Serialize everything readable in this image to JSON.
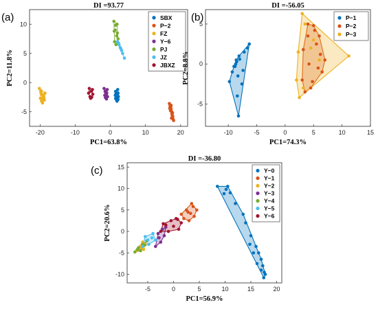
{
  "panels": {
    "a": {
      "letter": "(a)"
    },
    "b": {
      "letter": "(b)"
    },
    "c": {
      "letter": "(c)"
    }
  },
  "chart_data": [
    {
      "id": "a",
      "type": "scatter",
      "title": "DI =93.77",
      "xlabel": "PC1=63.8%",
      "ylabel": "PC2=11.8%",
      "xlim": [
        -23,
        22
      ],
      "ylim": [
        -7.5,
        12.5
      ],
      "xticks": [
        -20,
        -10,
        0,
        10,
        20
      ],
      "yticks": [
        -5,
        0,
        5,
        10
      ],
      "legend_position": "top-right",
      "hulls": false,
      "series": [
        {
          "name": "SBX",
          "color": "#0072BD",
          "x": [
            1.5,
            1.8,
            2.0,
            1.6,
            2.2,
            1.9,
            1.4,
            2.1,
            1.7,
            2.3,
            1.8,
            1.6,
            2.0,
            1.5,
            2.2
          ],
          "y": [
            -1.5,
            -2.0,
            -2.5,
            -2.8,
            -1.8,
            -3.2,
            -2.2,
            -1.2,
            -2.6,
            -2.4,
            -3.0,
            -1.9,
            -2.1,
            -2.7,
            -2.9
          ]
        },
        {
          "name": "P−2",
          "color": "#D95319",
          "x": [
            16.8,
            17.0,
            17.3,
            17.5,
            17.2,
            17.8,
            17.6,
            17.1,
            17.4,
            16.9,
            18.0,
            17.7,
            17.3,
            17.9
          ],
          "y": [
            -3.6,
            -4.0,
            -4.5,
            -5.0,
            -4.2,
            -5.8,
            -5.5,
            -4.8,
            -6.1,
            -4.4,
            -6.5,
            -5.2,
            -3.9,
            -6.3
          ]
        },
        {
          "name": "FZ",
          "color": "#EDB120",
          "x": [
            -20.2,
            -19.8,
            -19.5,
            -19.2,
            -18.8,
            -19.6,
            -19.0,
            -18.6,
            -19.9,
            -19.3,
            -18.9,
            -19.7,
            -19.1,
            -19.4
          ],
          "y": [
            -1.0,
            -1.6,
            -2.0,
            -2.5,
            -3.0,
            -3.2,
            -2.2,
            -1.8,
            -2.7,
            -3.5,
            -2.6,
            -1.4,
            -2.9,
            -2.1
          ]
        },
        {
          "name": "Y−6",
          "color": "#7E2F8E",
          "x": [
            -1.8,
            -1.5,
            -1.2,
            -0.8,
            -1.4,
            -1.0,
            -1.6,
            -0.9,
            -1.3,
            -1.1
          ],
          "y": [
            -1.0,
            -1.5,
            -2.0,
            -2.4,
            -2.6,
            -1.8,
            -2.2,
            -1.2,
            -1.6,
            -2.8
          ]
        },
        {
          "name": "PJ",
          "color": "#77AC30",
          "x": [
            1.0,
            1.5,
            2.0,
            1.2,
            1.8,
            1.4,
            2.2,
            1.6,
            1.1,
            1.9
          ],
          "y": [
            10.5,
            9.8,
            8.5,
            7.0,
            8.0,
            9.0,
            7.5,
            6.5,
            8.8,
            10.0
          ]
        },
        {
          "name": "JZ",
          "color": "#4DBEEE",
          "x": [
            2.0,
            2.5,
            3.0,
            3.5,
            4.0,
            2.8,
            3.2,
            2.3
          ],
          "y": [
            7.0,
            6.5,
            5.8,
            5.0,
            4.2,
            6.0,
            5.5,
            6.8
          ]
        },
        {
          "name": "JBXZ",
          "color": "#A2142F",
          "x": [
            -6.0,
            -5.5,
            -5.0,
            -6.2,
            -5.3,
            -5.8,
            -5.1,
            -5.6
          ],
          "y": [
            -1.0,
            -1.5,
            -2.0,
            -1.8,
            -2.5,
            -2.4,
            -1.2,
            -2.7
          ]
        }
      ]
    },
    {
      "id": "b",
      "type": "scatter",
      "title": "DI =-56.05",
      "xlabel": "PC1=74.3%",
      "ylabel": "PC2=8.8%",
      "xlim": [
        -14,
        15
      ],
      "ylim": [
        -7.8,
        6.8
      ],
      "xticks": [
        -10,
        -5,
        0,
        5,
        10,
        15
      ],
      "yticks": [
        -5,
        0,
        5
      ],
      "legend_position": "top-right",
      "hulls": true,
      "series": [
        {
          "name": "P−1",
          "color": "#0072BD",
          "hull_fill": "#0072BD",
          "x": [
            -6.3,
            -6.6,
            -7.2,
            -8.1,
            -8.6,
            -8.8,
            -9.3,
            -9.8,
            -8.2,
            -8.4,
            -7.6,
            -7.4,
            -8.5,
            -9.0,
            -8.0,
            -8.3,
            -8.7
          ],
          "y": [
            2.5,
            2.0,
            1.5,
            1.0,
            0.5,
            -0.3,
            -1.0,
            -2.2,
            -6.5,
            -4.0,
            -2.5,
            -0.8,
            0.3,
            -0.3,
            0.6,
            -1.5,
            0.0
          ]
        },
        {
          "name": "P−2",
          "color": "#D95319",
          "hull_fill": "#D95319",
          "x": [
            4.0,
            5.0,
            6.0,
            7.0,
            6.5,
            4.5,
            3.5,
            3.0,
            4.2,
            5.5,
            5.8,
            3.2,
            4.8,
            6.2,
            4.0,
            5.2
          ],
          "y": [
            5.0,
            4.8,
            3.5,
            0.5,
            -1.0,
            -3.0,
            -3.5,
            -2.0,
            0.0,
            2.5,
            -0.5,
            1.8,
            -2.2,
            1.2,
            3.5,
            4.2
          ]
        },
        {
          "name": "P−3",
          "color": "#EDB120",
          "hull_fill": "#EDB120",
          "x": [
            3.0,
            11.2,
            2.5,
            2.0,
            3.5,
            4.5,
            6.0,
            2.3,
            3.2,
            5.0
          ],
          "y": [
            6.3,
            1.0,
            -4.2,
            -2.0,
            5.0,
            2.0,
            0.5,
            1.5,
            -3.0,
            3.0
          ]
        }
      ]
    },
    {
      "id": "c",
      "type": "scatter",
      "title": "DI =-36.80",
      "xlabel": "PC1=56.9%",
      "ylabel": "PC2=20.6%",
      "xlim": [
        -9,
        21
      ],
      "ylim": [
        -12,
        16
      ],
      "xticks": [
        -5,
        0,
        5,
        10,
        15,
        20
      ],
      "yticks": [
        -10,
        -5,
        0,
        5,
        10,
        15
      ],
      "legend_position": "top-right",
      "hulls": true,
      "series": [
        {
          "name": "Y−0",
          "color": "#0072BD",
          "hull_fill": "#0072BD",
          "x": [
            8.5,
            10.5,
            11.0,
            9.8,
            10.2,
            12.0,
            13.5,
            14.0,
            15.0,
            16.0,
            16.5,
            17.0,
            17.3,
            17.6,
            17.8,
            17.0,
            16.2,
            15.5,
            14.8,
            17.5
          ],
          "y": [
            10.5,
            10.5,
            9.0,
            8.8,
            9.8,
            6.5,
            4.0,
            2.0,
            -1.0,
            -3.5,
            -5.0,
            -6.5,
            -8.0,
            -9.5,
            -10.0,
            -9.0,
            -7.5,
            -5.0,
            -3.0,
            -10.8
          ]
        },
        {
          "name": "Y−1",
          "color": "#D95319",
          "hull_fill": "#D95319",
          "x": [
            1.5,
            2.5,
            3.5,
            4.5,
            4.0,
            3.0,
            2.0,
            2.8,
            3.8,
            3.3
          ],
          "y": [
            4.0,
            5.0,
            6.5,
            5.0,
            3.5,
            2.5,
            3.0,
            4.5,
            5.8,
            4.2
          ]
        },
        {
          "name": "Y−2",
          "color": "#EDB120",
          "hull_fill": "#EDB120",
          "x": [
            -7.2,
            -6.5,
            -6.0,
            -5.5,
            -6.8,
            -5.8,
            -6.2
          ],
          "y": [
            -4.5,
            -3.5,
            -2.5,
            -3.0,
            -4.0,
            -4.2,
            -3.8
          ]
        },
        {
          "name": "Y−3",
          "color": "#7E2F8E",
          "hull_fill": "#7E2F8E",
          "x": [
            -3.5,
            -2.8,
            -2.2,
            -1.5,
            -2.5,
            -3.0,
            -1.8
          ],
          "y": [
            -3.5,
            -1.5,
            0.5,
            1.0,
            -2.5,
            -0.5,
            -1.0
          ]
        },
        {
          "name": "Y−4",
          "color": "#77AC30",
          "hull_fill": "#77AC30",
          "x": [
            -7.5,
            -6.8,
            -6.0,
            -5.2,
            -7.0,
            -6.4,
            -5.6
          ],
          "y": [
            -4.8,
            -3.8,
            -3.0,
            -2.2,
            -4.2,
            -4.5,
            -3.2
          ]
        },
        {
          "name": "Y−5",
          "color": "#4DBEEE",
          "hull_fill": "#4DBEEE",
          "x": [
            -6.0,
            -5.0,
            -4.0,
            -3.5,
            -4.8,
            -5.5,
            -4.2
          ],
          "y": [
            -3.5,
            -2.0,
            -0.5,
            -2.0,
            -3.0,
            -1.2,
            -1.5
          ]
        },
        {
          "name": "Y−6",
          "color": "#A2142F",
          "hull_fill": "#A2142F",
          "x": [
            -2.5,
            -1.5,
            -0.5,
            0.5,
            1.5,
            1.0,
            -1.0,
            -2.0,
            0.0,
            0.8
          ],
          "y": [
            0.0,
            1.5,
            2.5,
            3.0,
            2.0,
            0.5,
            0.0,
            1.8,
            1.2,
            2.8
          ]
        }
      ]
    }
  ]
}
